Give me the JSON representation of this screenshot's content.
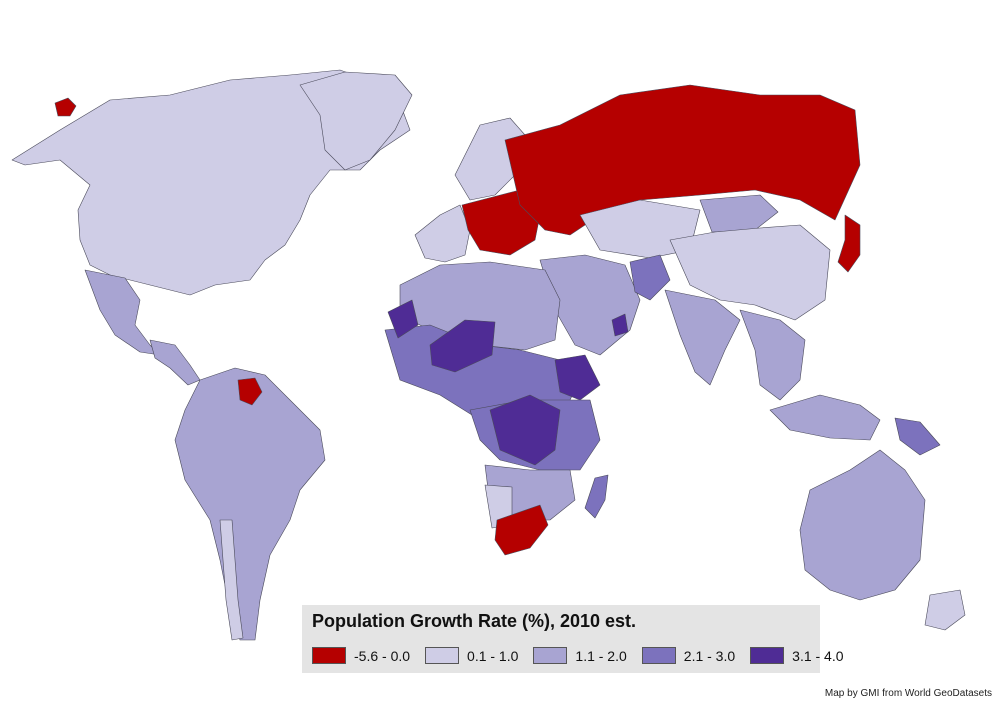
{
  "legend": {
    "title": "Population Growth Rate (%), 2010 est.",
    "items": [
      {
        "label": "-5.6 - 0.0",
        "color": "#b50000"
      },
      {
        "label": "0.1 - 1.0",
        "color": "#cfcde6"
      },
      {
        "label": "1.1 - 2.0",
        "color": "#a8a4d2"
      },
      {
        "label": "2.1 - 3.0",
        "color": "#7c72bd"
      },
      {
        "label": "3.1 - 4.0",
        "color": "#4f2c95"
      }
    ]
  },
  "credit": "Map by GMI from World GeoDatasets",
  "regions": [
    {
      "id": "north-america",
      "class": 1
    },
    {
      "id": "greenland",
      "class": 1
    },
    {
      "id": "greenland-northeast-tip",
      "class": 0
    },
    {
      "id": "mexico",
      "class": 2
    },
    {
      "id": "central-america",
      "class": 2
    },
    {
      "id": "south-america",
      "class": 2
    },
    {
      "id": "argentina-chile-south",
      "class": 1
    },
    {
      "id": "guyana",
      "class": 0
    },
    {
      "id": "iceland-scandinavia",
      "class": 1
    },
    {
      "id": "western-europe",
      "class": 1
    },
    {
      "id": "eastern-europe",
      "class": 0
    },
    {
      "id": "russia",
      "class": 0
    },
    {
      "id": "japan",
      "class": 0
    },
    {
      "id": "middle-east",
      "class": 2
    },
    {
      "id": "central-asia",
      "class": 1
    },
    {
      "id": "mongolia",
      "class": 2
    },
    {
      "id": "china",
      "class": 1
    },
    {
      "id": "afghanistan",
      "class": 3
    },
    {
      "id": "india",
      "class": 2
    },
    {
      "id": "southeast-asia",
      "class": 2
    },
    {
      "id": "indonesia",
      "class": 2
    },
    {
      "id": "papua-new-guinea",
      "class": 3
    },
    {
      "id": "australia",
      "class": 2
    },
    {
      "id": "new-zealand",
      "class": 1
    },
    {
      "id": "north-africa",
      "class": 2
    },
    {
      "id": "west-africa",
      "class": 3
    },
    {
      "id": "niger-mali",
      "class": 4
    },
    {
      "id": "western-sahara",
      "class": 4
    },
    {
      "id": "ethiopia",
      "class": 4
    },
    {
      "id": "dr-congo",
      "class": 4
    },
    {
      "id": "east-central-africa",
      "class": 3
    },
    {
      "id": "southern-africa",
      "class": 2
    },
    {
      "id": "namibia-botswana",
      "class": 1
    },
    {
      "id": "south-africa",
      "class": 0
    },
    {
      "id": "madagascar",
      "class": 3
    },
    {
      "id": "uae",
      "class": 4
    }
  ]
}
